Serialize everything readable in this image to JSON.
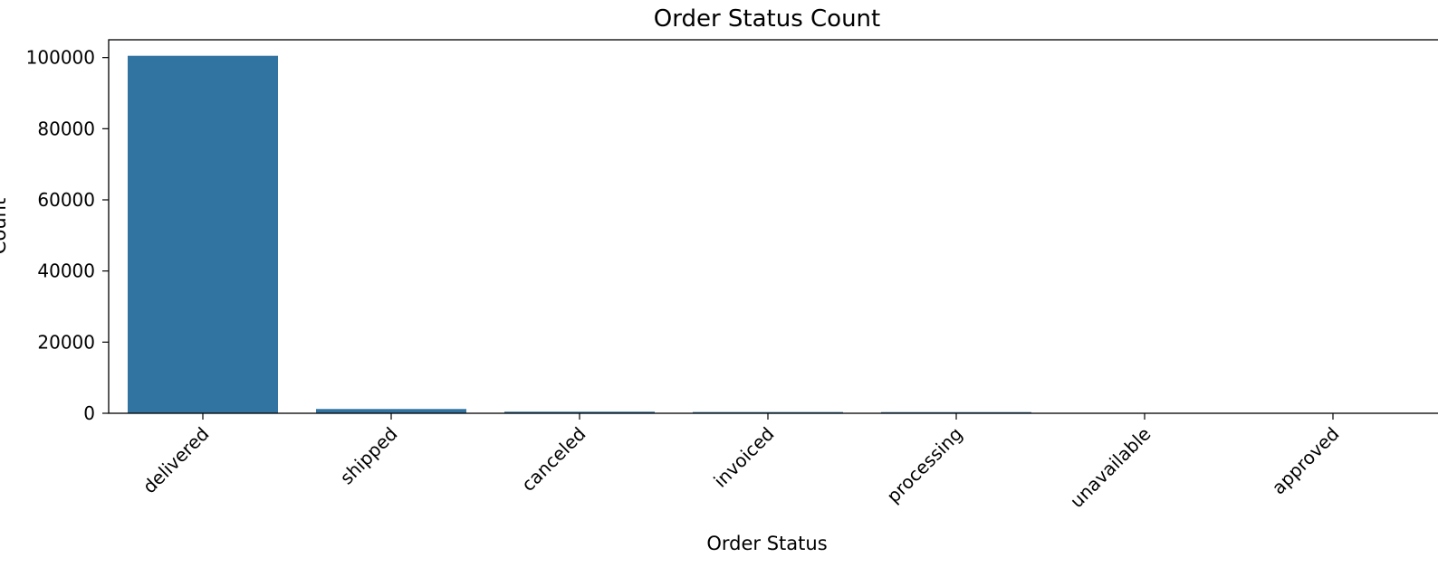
{
  "chart_data": {
    "type": "bar",
    "title": "Order Status Count",
    "xlabel": "Order Status",
    "ylabel": "Count",
    "categories": [
      "delivered",
      "shipped",
      "canceled",
      "invoiced",
      "processing",
      "unavailable",
      "approved"
    ],
    "values": [
      100500,
      1200,
      450,
      350,
      330,
      7,
      3
    ],
    "ylim": [
      0,
      105000
    ],
    "yticks": [
      0,
      20000,
      40000,
      60000,
      80000,
      100000
    ],
    "grid": false,
    "bar_color": "#3274a1"
  }
}
